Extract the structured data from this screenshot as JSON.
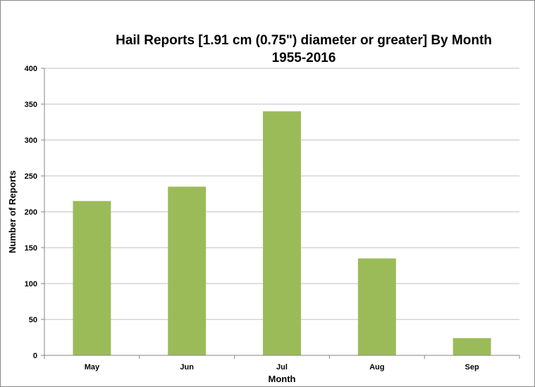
{
  "chart_data": {
    "type": "bar",
    "title": "Hail Reports [1.91 cm (0.75\") diameter or greater] By Month",
    "subtitle": "1955-2016",
    "xlabel": "Month",
    "ylabel": "Number of Reports",
    "categories": [
      "May",
      "Jun",
      "Jul",
      "Aug",
      "Sep"
    ],
    "values": [
      215,
      235,
      340,
      135,
      24
    ],
    "ylim": [
      0,
      400
    ],
    "yticks": [
      0,
      50,
      100,
      150,
      200,
      250,
      300,
      350,
      400
    ],
    "grid": true,
    "bar_color": "#9bbb59",
    "legend": "none"
  }
}
